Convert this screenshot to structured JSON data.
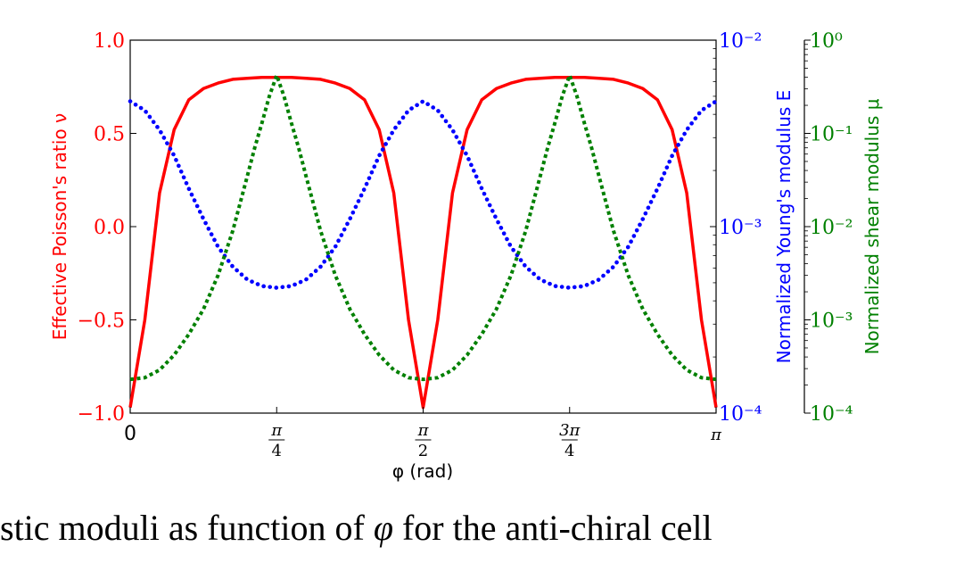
{
  "chart_data": {
    "type": "line",
    "xlabel": "φ (rad)",
    "x_domain": [
      0,
      3.14159265
    ],
    "x_ticks": [
      "0",
      "π/4",
      "π/2",
      "3π/4",
      "π"
    ],
    "axes": {
      "left": {
        "label": "Effective Poisson's ratio ν",
        "color": "#ff0000",
        "scale": "linear",
        "ylim": [
          -1.0,
          1.0
        ],
        "ticks": [
          "1.0",
          "0.5",
          "0.0",
          "−0.5",
          "−1.0"
        ]
      },
      "right1": {
        "label": "Normalized Young's modulus E",
        "color": "#0000ff",
        "scale": "log",
        "ylim": [
          0.0001,
          0.01
        ],
        "ticks": [
          "10⁻²",
          "10⁻³",
          "10⁻⁴"
        ]
      },
      "right2": {
        "label": "Normalized shear modulus μ",
        "color": "#008000",
        "scale": "log",
        "ylim": [
          0.0001,
          1
        ],
        "ticks": [
          "10⁰",
          "10⁻¹",
          "10⁻²",
          "10⁻³",
          "10⁻⁴"
        ]
      }
    },
    "series": [
      {
        "axis": "left",
        "style": "solid",
        "color": "#ff0000",
        "x": [
          0.0,
          0.0785,
          0.1571,
          0.2356,
          0.3142,
          0.3927,
          0.4712,
          0.5498,
          0.6283,
          0.7069,
          0.7854,
          0.8639,
          0.9425,
          1.021,
          1.0996,
          1.1781,
          1.2566,
          1.3352,
          1.4137,
          1.4923,
          1.5708,
          1.6493,
          1.7279,
          1.8064,
          1.885,
          1.9635,
          2.042,
          2.1206,
          2.1991,
          2.2777,
          2.3562,
          2.4347,
          2.5133,
          2.5918,
          2.6704,
          2.7489,
          2.8274,
          2.906,
          2.9845,
          3.0631,
          3.1416
        ],
        "y": [
          -0.97,
          -0.5,
          0.18,
          0.52,
          0.68,
          0.74,
          0.77,
          0.79,
          0.795,
          0.8,
          0.8,
          0.8,
          0.795,
          0.79,
          0.77,
          0.74,
          0.68,
          0.52,
          0.18,
          -0.5,
          -0.97,
          -0.5,
          0.18,
          0.52,
          0.68,
          0.74,
          0.77,
          0.79,
          0.795,
          0.8,
          0.8,
          0.8,
          0.795,
          0.79,
          0.77,
          0.74,
          0.68,
          0.52,
          0.18,
          -0.5,
          -0.97
        ]
      },
      {
        "axis": "right1",
        "style": "dotted",
        "color": "#0000ff",
        "x": [
          0.0,
          0.0785,
          0.1571,
          0.2356,
          0.3142,
          0.3927,
          0.4712,
          0.5498,
          0.6283,
          0.7069,
          0.7854,
          0.8639,
          0.9425,
          1.021,
          1.0996,
          1.1781,
          1.2566,
          1.3352,
          1.4137,
          1.4923,
          1.5708,
          1.6493,
          1.7279,
          1.8064,
          1.885,
          1.9635,
          2.042,
          2.1206,
          2.1991,
          2.2777,
          2.3562,
          2.4347,
          2.5133,
          2.5918,
          2.6704,
          2.7489,
          2.8274,
          2.906,
          2.9845,
          3.0631,
          3.1416
        ],
        "y": [
          0.0047,
          0.0042,
          0.0033,
          0.0024,
          0.0016,
          0.0011,
          0.00078,
          0.00061,
          0.00052,
          0.00048,
          0.00047,
          0.00048,
          0.00052,
          0.00061,
          0.00078,
          0.0011,
          0.0016,
          0.0024,
          0.0033,
          0.0042,
          0.0047,
          0.0042,
          0.0033,
          0.0024,
          0.0016,
          0.0011,
          0.00078,
          0.00061,
          0.00052,
          0.00048,
          0.00047,
          0.00048,
          0.00052,
          0.00061,
          0.00078,
          0.0011,
          0.0016,
          0.0024,
          0.0033,
          0.0042,
          0.0047
        ]
      },
      {
        "axis": "right2",
        "style": "dashed",
        "color": "#008000",
        "x": [
          0.0,
          0.0785,
          0.1571,
          0.2356,
          0.3142,
          0.3927,
          0.4712,
          0.5498,
          0.6283,
          0.6676,
          0.7069,
          0.7461,
          0.7854,
          0.8247,
          0.8639,
          0.9032,
          0.9425,
          1.021,
          1.0996,
          1.1781,
          1.2566,
          1.3352,
          1.4137,
          1.4923,
          1.5708,
          1.6493,
          1.7279,
          1.8064,
          1.885,
          1.9635,
          2.042,
          2.1206,
          2.1991,
          2.2384,
          2.2777,
          2.3169,
          2.3562,
          2.3955,
          2.4347,
          2.474,
          2.5133,
          2.5918,
          2.6704,
          2.7489,
          2.8274,
          2.906,
          2.9845,
          3.0631,
          3.1416
        ],
        "y": [
          0.00023,
          0.00024,
          0.00029,
          0.00042,
          0.0007,
          0.0013,
          0.003,
          0.009,
          0.035,
          0.07,
          0.13,
          0.25,
          0.42,
          0.25,
          0.13,
          0.07,
          0.035,
          0.009,
          0.003,
          0.0013,
          0.0007,
          0.00042,
          0.00029,
          0.00024,
          0.00023,
          0.00024,
          0.00029,
          0.00042,
          0.0007,
          0.0013,
          0.003,
          0.009,
          0.035,
          0.07,
          0.13,
          0.25,
          0.42,
          0.25,
          0.13,
          0.07,
          0.035,
          0.009,
          0.003,
          0.0013,
          0.0007,
          0.00042,
          0.00029,
          0.00024,
          0.00023
        ]
      }
    ],
    "grid": false
  },
  "caption": {
    "text_before": "stic moduli as function of ",
    "phi": "φ",
    "text_after": " for the anti-chiral cell"
  }
}
